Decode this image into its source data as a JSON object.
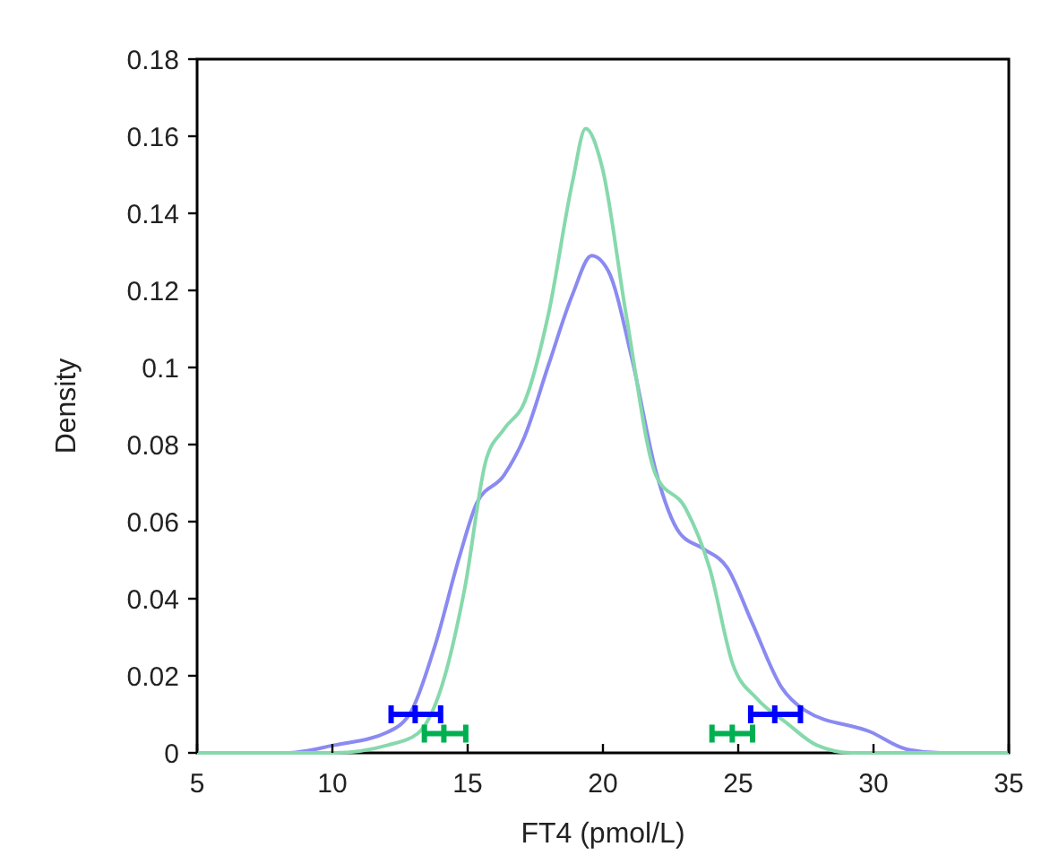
{
  "chart_data": {
    "type": "line",
    "xlabel": "FT4 (pmol/L)",
    "ylabel": "Density",
    "xlim": [
      5,
      35
    ],
    "ylim": [
      0,
      0.18
    ],
    "xticks": [
      5,
      10,
      15,
      20,
      25,
      30,
      35
    ],
    "yticks": [
      0,
      0.02,
      0.04,
      0.06,
      0.08,
      0.1,
      0.12,
      0.14,
      0.16,
      0.18
    ],
    "grid": false,
    "line_style": "solid",
    "series": [
      {
        "color": "#8a8af2",
        "x": [
          5,
          8.3,
          10.07,
          12.05,
          12.93,
          13.8,
          14.7,
          15.35,
          16.34,
          17.1,
          17.99,
          18.88,
          19.58,
          20.2,
          21.08,
          21.96,
          22.84,
          23.7,
          24.6,
          25.5,
          26.6,
          27.47,
          29.9,
          31.2,
          32.5,
          35
        ],
        "values": [
          0,
          0,
          0.002,
          0.0054,
          0.011,
          0.028,
          0.051,
          0.065,
          0.072,
          0.082,
          0.1007,
          0.119,
          0.129,
          0.125,
          0.102,
          0.073,
          0.057,
          0.053,
          0.048,
          0.034,
          0.017,
          0.011,
          0.0054,
          0.001,
          0,
          0
        ]
      },
      {
        "color": "#86d9ac",
        "x": [
          5,
          10.07,
          12.05,
          13.15,
          14.03,
          14.9,
          15.68,
          16.34,
          17.1,
          17.99,
          18.87,
          19.36,
          19.97,
          20.85,
          21.96,
          23.05,
          23.94,
          24.8,
          25.7,
          26.8,
          27.9,
          29.2,
          35
        ],
        "values": [
          0,
          0,
          0.002,
          0.005,
          0.017,
          0.043,
          0.076,
          0.084,
          0.091,
          0.114,
          0.148,
          0.162,
          0.152,
          0.114,
          0.072,
          0.0635,
          0.048,
          0.023,
          0.014,
          0.0077,
          0.002,
          0,
          0
        ]
      },
      {
        "type": "scatter",
        "color": "#0000ff",
        "x": [
          13.06,
          26.35
        ],
        "values": [
          0.01,
          0.01
        ],
        "xerrors": [
          [
            12.17,
            14.0
          ],
          [
            25.46,
            27.3
          ]
        ]
      },
      {
        "type": "scatter",
        "color": "#00b050",
        "x": [
          14.12,
          24.78
        ],
        "values": [
          0.005,
          0.005
        ],
        "xerrors": [
          [
            13.4,
            14.93
          ],
          [
            24.03,
            25.53
          ]
        ]
      }
    ]
  }
}
